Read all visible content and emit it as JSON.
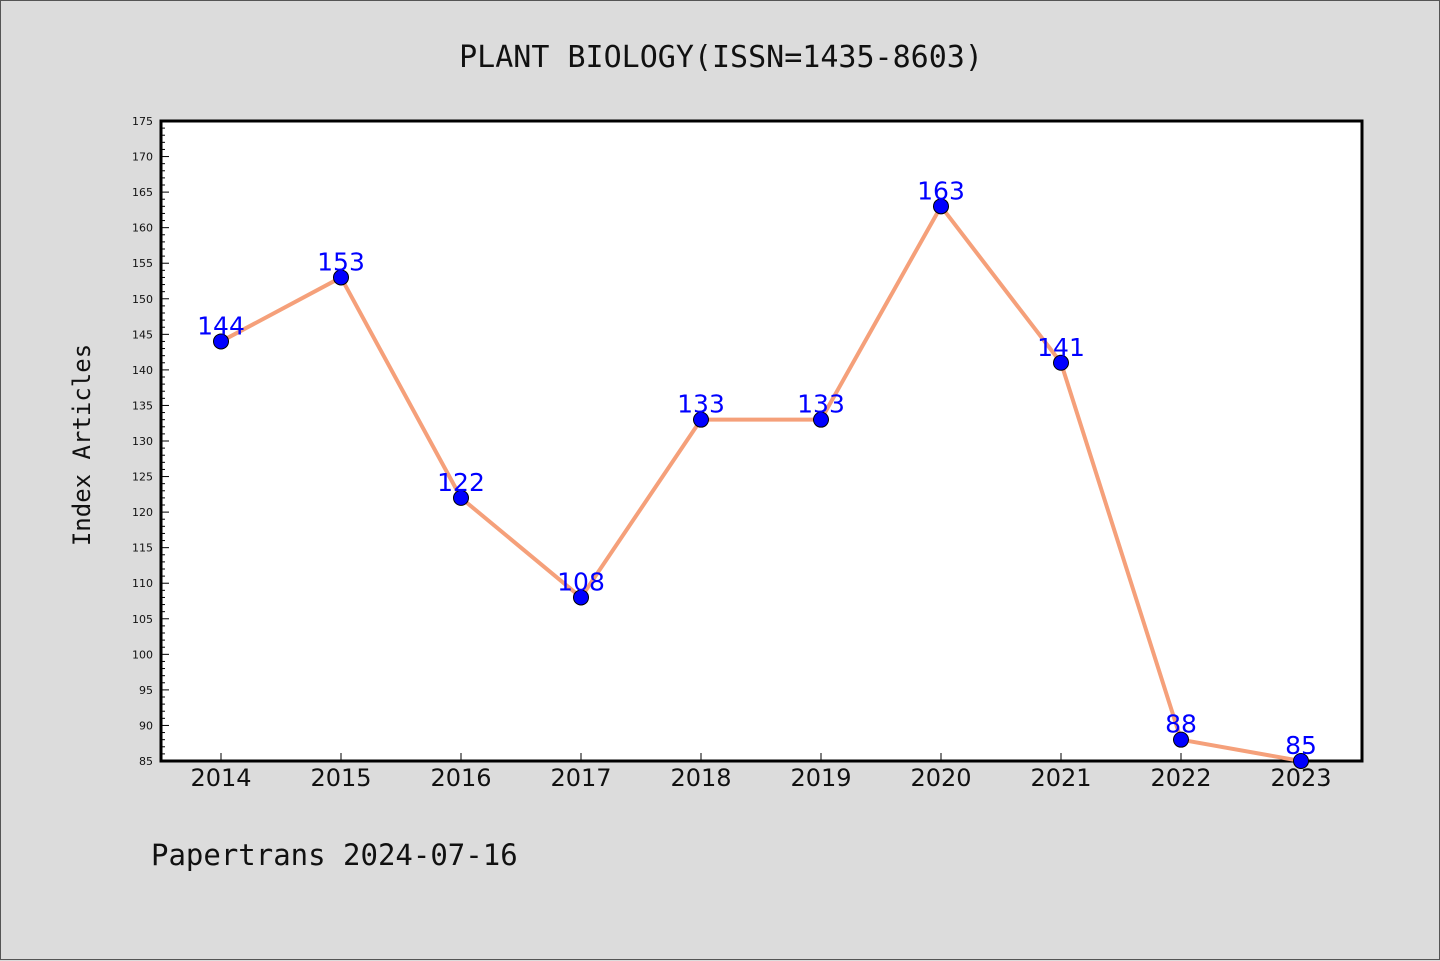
{
  "chart_data": {
    "type": "line",
    "title": "PLANT BIOLOGY(ISSN=1435-8603)",
    "xlabel": "",
    "ylabel": "Index Articles",
    "categories": [
      "2014",
      "2015",
      "2016",
      "2017",
      "2018",
      "2019",
      "2020",
      "2021",
      "2022",
      "2023"
    ],
    "series": [
      {
        "values": [
          144,
          153,
          122,
          108,
          133,
          133,
          163,
          141,
          88,
          85
        ]
      }
    ],
    "ylim": [
      85,
      175
    ],
    "ytick_step": 5,
    "grid": false,
    "line_color": "#f5a07a",
    "marker_color": "#0000ff",
    "label_color": "#0000ff"
  },
  "footer": {
    "text": "Papertrans 2024-07-16"
  }
}
